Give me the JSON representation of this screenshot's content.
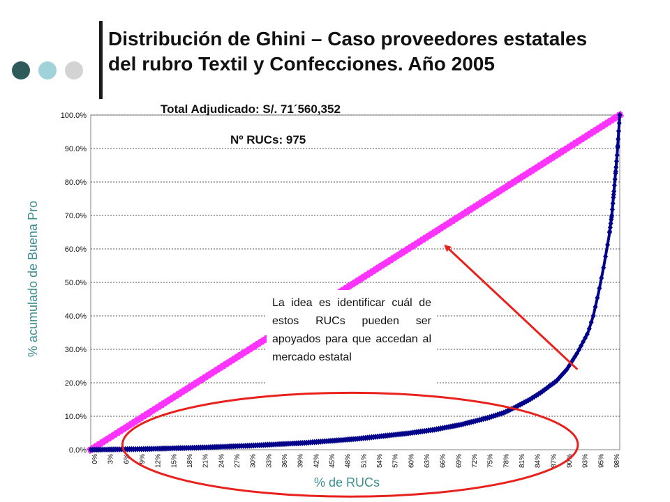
{
  "slide": {
    "title_line1": "Distribución de Ghini – Caso proveedores estatales",
    "title_line2": "del rubro Textil y Confecciones. Año 2005",
    "dot_colors": [
      "#2f5a5a",
      "#9fd3d9",
      "#d3d3d3"
    ]
  },
  "annotations": {
    "total": "Total Adjudicado: S/. 71´560,352",
    "rucs": "Nº RUCs: 975",
    "note": "La idea es identificar cuál de estos RUCs pueden ser apoyados para que accedan al mercado estatal"
  },
  "chart_data": {
    "type": "line",
    "title": "",
    "xlabel": "% de RUCs",
    "ylabel": "% acumulado de Buena Pro",
    "xlim": [
      0,
      100
    ],
    "ylim": [
      0,
      100
    ],
    "grid": true,
    "x_ticks": [
      "0%",
      "3%",
      "6%",
      "9%",
      "12%",
      "15%",
      "18%",
      "21%",
      "24%",
      "27%",
      "30%",
      "33%",
      "36%",
      "39%",
      "42%",
      "45%",
      "48%",
      "51%",
      "54%",
      "57%",
      "60%",
      "63%",
      "66%",
      "69%",
      "72%",
      "75%",
      "78%",
      "81%",
      "84%",
      "87%",
      "90%",
      "93%",
      "95%",
      "98%"
    ],
    "y_ticks": [
      "0.0%",
      "10.0%",
      "20.0%",
      "30.0%",
      "40.0%",
      "50.0%",
      "60.0%",
      "70.0%",
      "80.0%",
      "90.0%",
      "100.0%"
    ],
    "series": [
      {
        "color": "#ff33ff",
        "marker": "square",
        "x": [
          0,
          100
        ],
        "y": [
          0,
          100
        ]
      },
      {
        "color": "#00008b",
        "marker": "diamond",
        "x": [
          0,
          10,
          20,
          30,
          40,
          50,
          60,
          65,
          70,
          75,
          78,
          80,
          83,
          85,
          88,
          90,
          92,
          94,
          95,
          96,
          97,
          98,
          98.5,
          99,
          99.5,
          100
        ],
        "y": [
          0,
          0.2,
          0.6,
          1.2,
          2.0,
          3.2,
          4.9,
          6.0,
          7.5,
          9.5,
          11.0,
          12.5,
          15.0,
          17.0,
          20.5,
          24.0,
          29.0,
          35.0,
          40.0,
          47.0,
          55.0,
          64.0,
          70.0,
          79.0,
          88.0,
          100.0
        ]
      }
    ],
    "highlight_ellipse": {
      "color": "#e8211c",
      "x_range": [
        6,
        100
      ],
      "y_range": [
        -14,
        17
      ]
    },
    "arrow": {
      "color": "#e8211c",
      "from": [
        92,
        24
      ],
      "to": [
        67,
        61
      ]
    }
  }
}
